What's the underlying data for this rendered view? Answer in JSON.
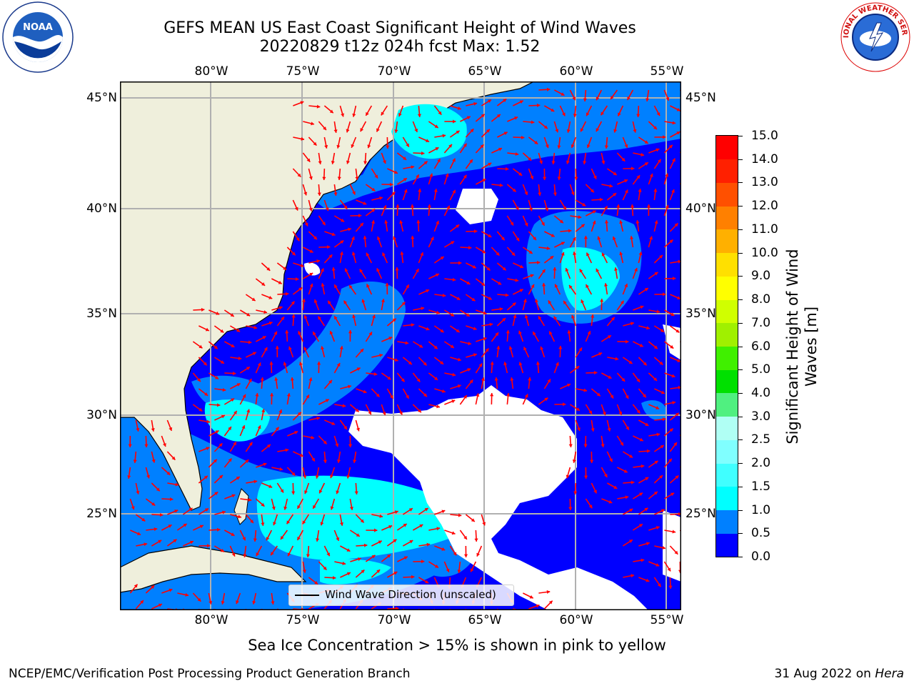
{
  "header": {
    "title_line1": "GEFS MEAN US East Coast Significant Height of Wind Waves",
    "title_line2": "20220829 t12z 024h fcst   Max: 1.52"
  },
  "logos": {
    "left": "NOAA",
    "right": "NATIONAL WEATHER SERVICE"
  },
  "map": {
    "lon_labels": [
      "80°W",
      "75°W",
      "70°W",
      "65°W",
      "60°W",
      "55°W"
    ],
    "lat_labels": [
      "45°N",
      "40°N",
      "35°N",
      "30°N",
      "25°N"
    ],
    "legend_label": "Wind Wave Direction (unscaled)",
    "colors": {
      "land": "#efefdc",
      "ocean_fill": "#0000ff",
      "no_data": "#ffffff",
      "grid": "#b0b0b0",
      "arrow": "#ff0000"
    }
  },
  "colorbar": {
    "label_line1": "Significant Height of Wind",
    "label_line2": "Waves [m]",
    "ticks": [
      "0.0",
      "0.5",
      "1.0",
      "1.5",
      "2.0",
      "2.5",
      "3.0",
      "4.0",
      "5.0",
      "6.0",
      "7.0",
      "8.0",
      "9.0",
      "10.0",
      "11.0",
      "12.0",
      "13.0",
      "14.0",
      "15.0"
    ],
    "colors": [
      "#0000ff",
      "#0080ff",
      "#00ffff",
      "#40ffff",
      "#80ffff",
      "#b0fff4",
      "#50f080",
      "#00e000",
      "#40f000",
      "#a0f000",
      "#d0ff00",
      "#ffff00",
      "#ffe000",
      "#ffb000",
      "#ff8000",
      "#ff5000",
      "#ff2000",
      "#ff0000"
    ]
  },
  "footer": {
    "note": "Sea Ice Concentration > 15% is shown in pink to yellow",
    "credit": "NCEP/EMC/Verification Post Processing Product Generation Branch",
    "date": "31 Aug 2022 on",
    "machine": "Hera"
  }
}
